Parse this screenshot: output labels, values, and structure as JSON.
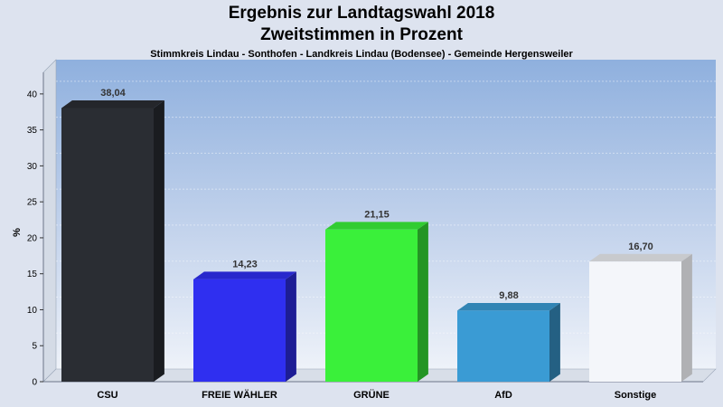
{
  "header": {
    "title": "Ergebnis zur Landtagswahl 2018",
    "subtitle": "Zweitstimmen in Prozent",
    "region": "Stimmkreis Lindau - Sonthofen - Landkreis Lindau (Bodensee) - Gemeinde Hergensweiler"
  },
  "chart_data": {
    "type": "bar",
    "title": "Ergebnis zur Landtagswahl 2018",
    "subtitle": "Zweitstimmen in Prozent",
    "ylabel": "%",
    "xlabel": "",
    "ylim": [
      0,
      43
    ],
    "yticks": [
      0,
      5,
      10,
      15,
      20,
      25,
      30,
      35,
      40
    ],
    "grid": true,
    "categories": [
      "CSU",
      "FREIE WÄHLER",
      "GRÜNE",
      "AfD",
      "Sonstige"
    ],
    "values": [
      38.04,
      14.23,
      21.15,
      9.88,
      16.7
    ],
    "value_labels": [
      "38,04",
      "14,23",
      "21,15",
      "9,88",
      "16,70"
    ],
    "colors": [
      "#2a2d33",
      "#2f2ff0",
      "#3af03a",
      "#3a9bd4",
      "#f4f6fa"
    ]
  }
}
